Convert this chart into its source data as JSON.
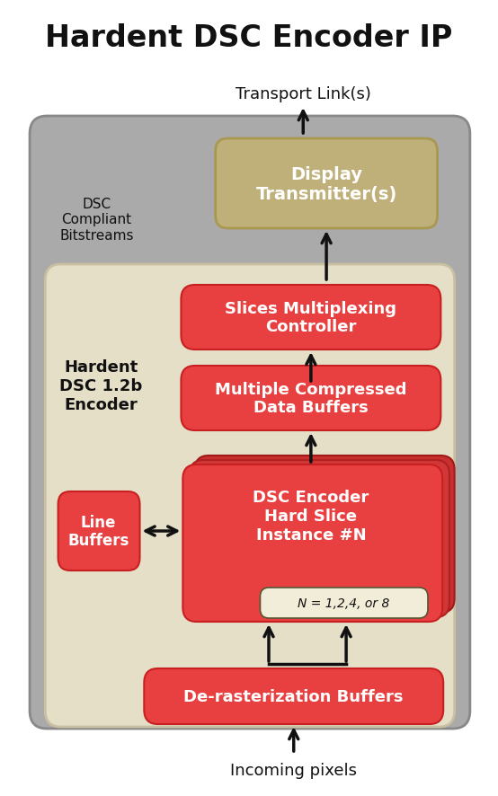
{
  "title": "Hardent DSC Encoder IP",
  "bg_color": "#ffffff",
  "gray_box_color": "#aaaaaa",
  "gray_box_edge": "#888888",
  "beige_box_color": "#e5dfc8",
  "beige_box_edge": "#c8c0a0",
  "red_box_color": "#e84040",
  "red_box_edge": "#c82020",
  "tan_box_color": "#bfb07a",
  "tan_box_edge": "#a89850",
  "note_box_color": "#f2edd8",
  "note_box_edge": "#555533",
  "white_text": "#ffffff",
  "dark_text": "#111111",
  "label_transport": "Transport Link(s)",
  "label_dsc_compliant": "DSC\nCompliant\nBitstreams",
  "label_hardent_encoder": "Hardent\nDSC 1.2b\nEncoder",
  "label_display_tx": "Display\nTransmitter(s)",
  "label_slices_mux": "Slices Multiplexing\nController",
  "label_multi_buf": "Multiple Compressed\nData Buffers",
  "label_dsc_encoder": "DSC Encoder\nHard Slice\nInstance #N",
  "label_n_note": "N = 1,2,4, or 8",
  "label_line_buf": "Line\nBuffers",
  "label_deraster": "De-rasterization Buffers",
  "label_incoming": "Incoming pixels",
  "fig_w": 5.54,
  "fig_h": 8.87,
  "dpi": 100
}
